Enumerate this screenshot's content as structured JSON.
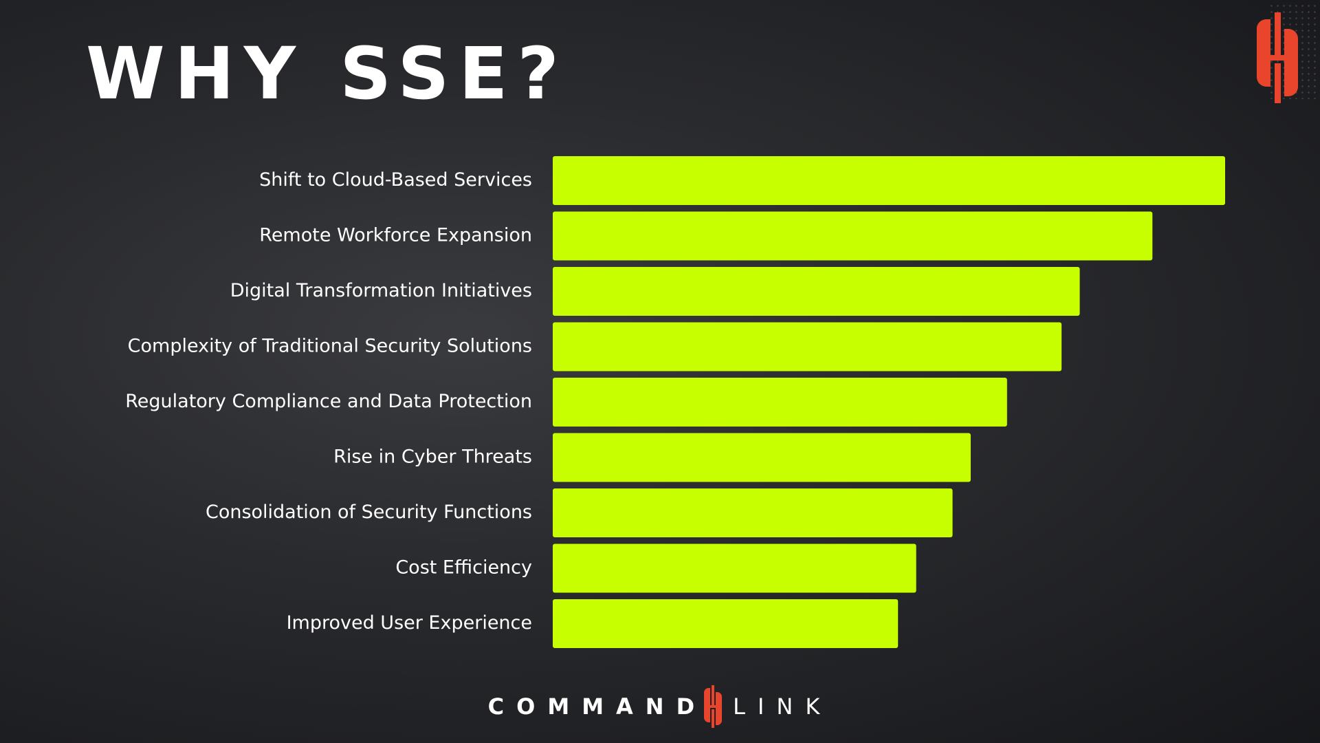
{
  "title": "WHY SSE?",
  "brand": {
    "name_left": "COMMAND",
    "name_right": "LINK",
    "mark_icon": "commandlink-logo-icon",
    "mark_color": "#e8452c",
    "wordmark_color": "#ffffff"
  },
  "colors": {
    "bar": "#c8ff00",
    "label": "#ffffff",
    "background": "#2a2b2e",
    "title": "#ffffff"
  },
  "chart_data": {
    "type": "bar",
    "orientation": "horizontal",
    "title": "WHY SSE?",
    "categories": [
      "Shift to Cloud-Based Services",
      "Remote Workforce Expansion",
      "Digital Transformation Initiatives",
      "Complexity of Traditional Security Solutions",
      "Regulatory Compliance and Data Protection",
      "Rise in Cyber Threats",
      "Consolidation of Security Functions",
      "Cost Efficiency",
      "Improved User Experience"
    ],
    "values": [
      37,
      33,
      29,
      28,
      25,
      23,
      22,
      20,
      19
    ],
    "xlabel": "",
    "ylabel": "",
    "xlim": [
      0,
      37
    ],
    "grid": false,
    "legend": "none",
    "axes_visible": false
  }
}
